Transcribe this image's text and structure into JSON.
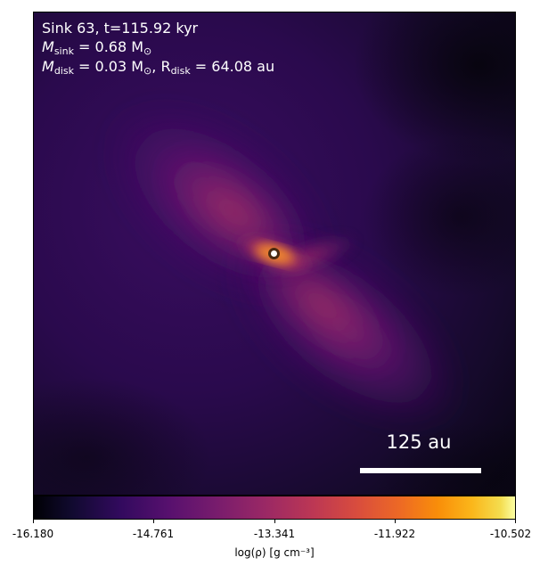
{
  "annotations": {
    "sink_line": "Sink 63, t=115.92 kyr",
    "m_sink_symbol": "M",
    "m_sink_sub": "sink",
    "m_sink_value": " = 0.68 M",
    "m_disk_symbol": "M",
    "m_disk_sub": "disk",
    "m_disk_value": " = 0.03 M",
    "r_disk_symbol": ", R",
    "r_disk_sub": "disk",
    "r_disk_value": " = 64.08 au",
    "solar_symbol": "⊙"
  },
  "scale_bar": {
    "label": "125 au"
  },
  "colorbar": {
    "colormap": "inferno",
    "label": "log(ρ) [g cm⁻³]",
    "ticks": [
      "-16.180",
      "-14.761",
      "-13.341",
      "-11.922",
      "-10.502"
    ],
    "min": -16.18,
    "max": -10.502
  },
  "colors": {
    "background_low": "#0d0717",
    "annotation_text": "#ffffff",
    "sink_marker_fill": "#ffffff",
    "sink_marker_edge": "#4a2a12"
  }
}
